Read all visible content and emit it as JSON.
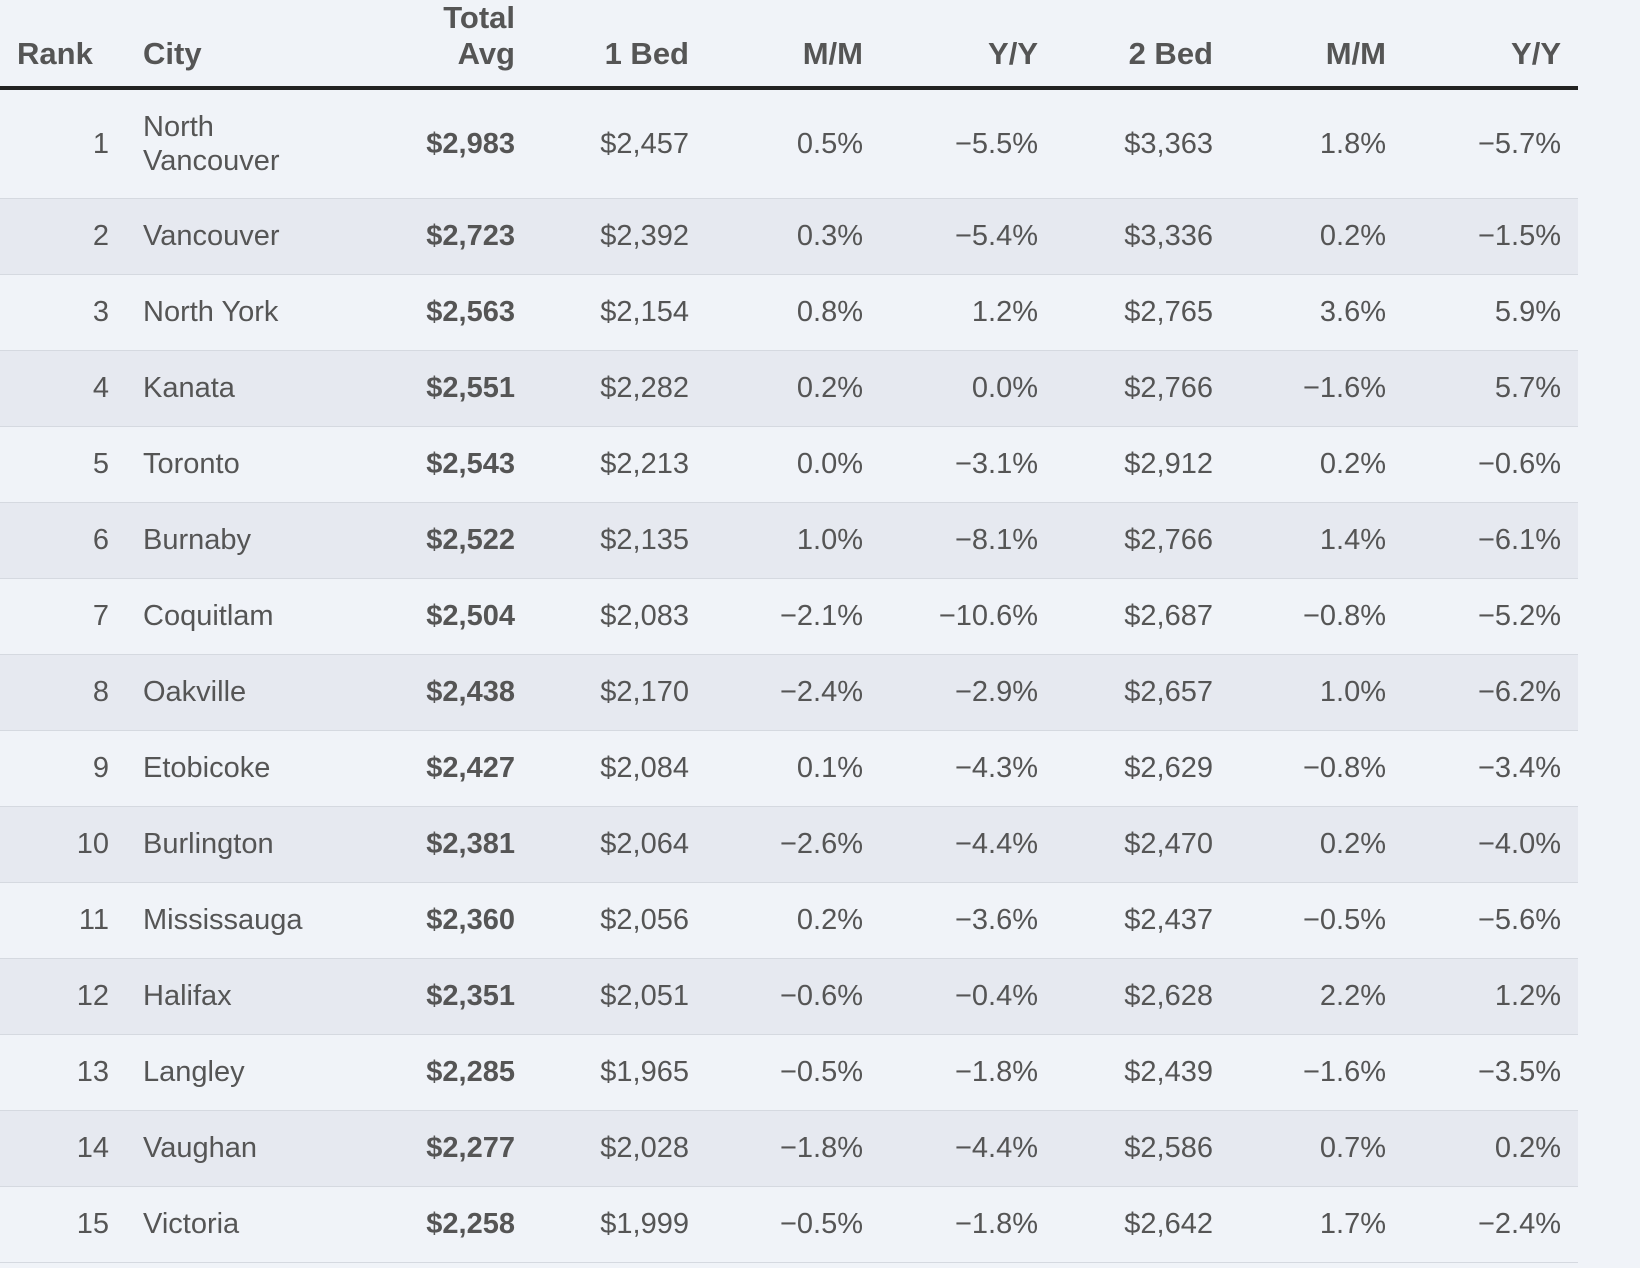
{
  "headers": {
    "rank": "Rank",
    "city": "City",
    "total_avg_line1": "Total",
    "total_avg_line2": "Avg",
    "one_bed": "1 Bed",
    "one_bed_mm": "M/M",
    "one_bed_yy": "Y/Y",
    "two_bed": "2 Bed",
    "two_bed_mm": "M/M",
    "two_bed_yy": "Y/Y"
  },
  "rows": [
    {
      "rank": "1",
      "city": "North Vancouver",
      "total_avg": "$2,983",
      "one_bed": "$2,457",
      "one_bed_mm": "0.5%",
      "one_bed_yy": "−5.5%",
      "two_bed": "$3,363",
      "two_bed_mm": "1.8%",
      "two_bed_yy": "−5.7%"
    },
    {
      "rank": "2",
      "city": "Vancouver",
      "total_avg": "$2,723",
      "one_bed": "$2,392",
      "one_bed_mm": "0.3%",
      "one_bed_yy": "−5.4%",
      "two_bed": "$3,336",
      "two_bed_mm": "0.2%",
      "two_bed_yy": "−1.5%"
    },
    {
      "rank": "3",
      "city": "North York",
      "total_avg": "$2,563",
      "one_bed": "$2,154",
      "one_bed_mm": "0.8%",
      "one_bed_yy": "1.2%",
      "two_bed": "$2,765",
      "two_bed_mm": "3.6%",
      "two_bed_yy": "5.9%"
    },
    {
      "rank": "4",
      "city": "Kanata",
      "total_avg": "$2,551",
      "one_bed": "$2,282",
      "one_bed_mm": "0.2%",
      "one_bed_yy": "0.0%",
      "two_bed": "$2,766",
      "two_bed_mm": "−1.6%",
      "two_bed_yy": "5.7%"
    },
    {
      "rank": "5",
      "city": "Toronto",
      "total_avg": "$2,543",
      "one_bed": "$2,213",
      "one_bed_mm": "0.0%",
      "one_bed_yy": "−3.1%",
      "two_bed": "$2,912",
      "two_bed_mm": "0.2%",
      "two_bed_yy": "−0.6%"
    },
    {
      "rank": "6",
      "city": "Burnaby",
      "total_avg": "$2,522",
      "one_bed": "$2,135",
      "one_bed_mm": "1.0%",
      "one_bed_yy": "−8.1%",
      "two_bed": "$2,766",
      "two_bed_mm": "1.4%",
      "two_bed_yy": "−6.1%"
    },
    {
      "rank": "7",
      "city": "Coquitlam",
      "total_avg": "$2,504",
      "one_bed": "$2,083",
      "one_bed_mm": "−2.1%",
      "one_bed_yy": "−10.6%",
      "two_bed": "$2,687",
      "two_bed_mm": "−0.8%",
      "two_bed_yy": "−5.2%"
    },
    {
      "rank": "8",
      "city": "Oakville",
      "total_avg": "$2,438",
      "one_bed": "$2,170",
      "one_bed_mm": "−2.4%",
      "one_bed_yy": "−2.9%",
      "two_bed": "$2,657",
      "two_bed_mm": "1.0%",
      "two_bed_yy": "−6.2%"
    },
    {
      "rank": "9",
      "city": "Etobicoke",
      "total_avg": "$2,427",
      "one_bed": "$2,084",
      "one_bed_mm": "0.1%",
      "one_bed_yy": "−4.3%",
      "two_bed": "$2,629",
      "two_bed_mm": "−0.8%",
      "two_bed_yy": "−3.4%"
    },
    {
      "rank": "10",
      "city": "Burlington",
      "total_avg": "$2,381",
      "one_bed": "$2,064",
      "one_bed_mm": "−2.6%",
      "one_bed_yy": "−4.4%",
      "two_bed": "$2,470",
      "two_bed_mm": "0.2%",
      "two_bed_yy": "−4.0%"
    },
    {
      "rank": "11",
      "city": "Mississauga",
      "total_avg": "$2,360",
      "one_bed": "$2,056",
      "one_bed_mm": "0.2%",
      "one_bed_yy": "−3.6%",
      "two_bed": "$2,437",
      "two_bed_mm": "−0.5%",
      "two_bed_yy": "−5.6%"
    },
    {
      "rank": "12",
      "city": "Halifax",
      "total_avg": "$2,351",
      "one_bed": "$2,051",
      "one_bed_mm": "−0.6%",
      "one_bed_yy": "−0.4%",
      "two_bed": "$2,628",
      "two_bed_mm": "2.2%",
      "two_bed_yy": "1.2%"
    },
    {
      "rank": "13",
      "city": "Langley",
      "total_avg": "$2,285",
      "one_bed": "$1,965",
      "one_bed_mm": "−0.5%",
      "one_bed_yy": "−1.8%",
      "two_bed": "$2,439",
      "two_bed_mm": "−1.6%",
      "two_bed_yy": "−3.5%"
    },
    {
      "rank": "14",
      "city": "Vaughan",
      "total_avg": "$2,277",
      "one_bed": "$2,028",
      "one_bed_mm": "−1.8%",
      "one_bed_yy": "−4.4%",
      "two_bed": "$2,586",
      "two_bed_mm": "0.7%",
      "two_bed_yy": "0.2%"
    },
    {
      "rank": "15",
      "city": "Victoria",
      "total_avg": "$2,258",
      "one_bed": "$1,999",
      "one_bed_mm": "−0.5%",
      "one_bed_yy": "−1.8%",
      "two_bed": "$2,642",
      "two_bed_mm": "1.7%",
      "two_bed_yy": "−2.4%"
    }
  ]
}
